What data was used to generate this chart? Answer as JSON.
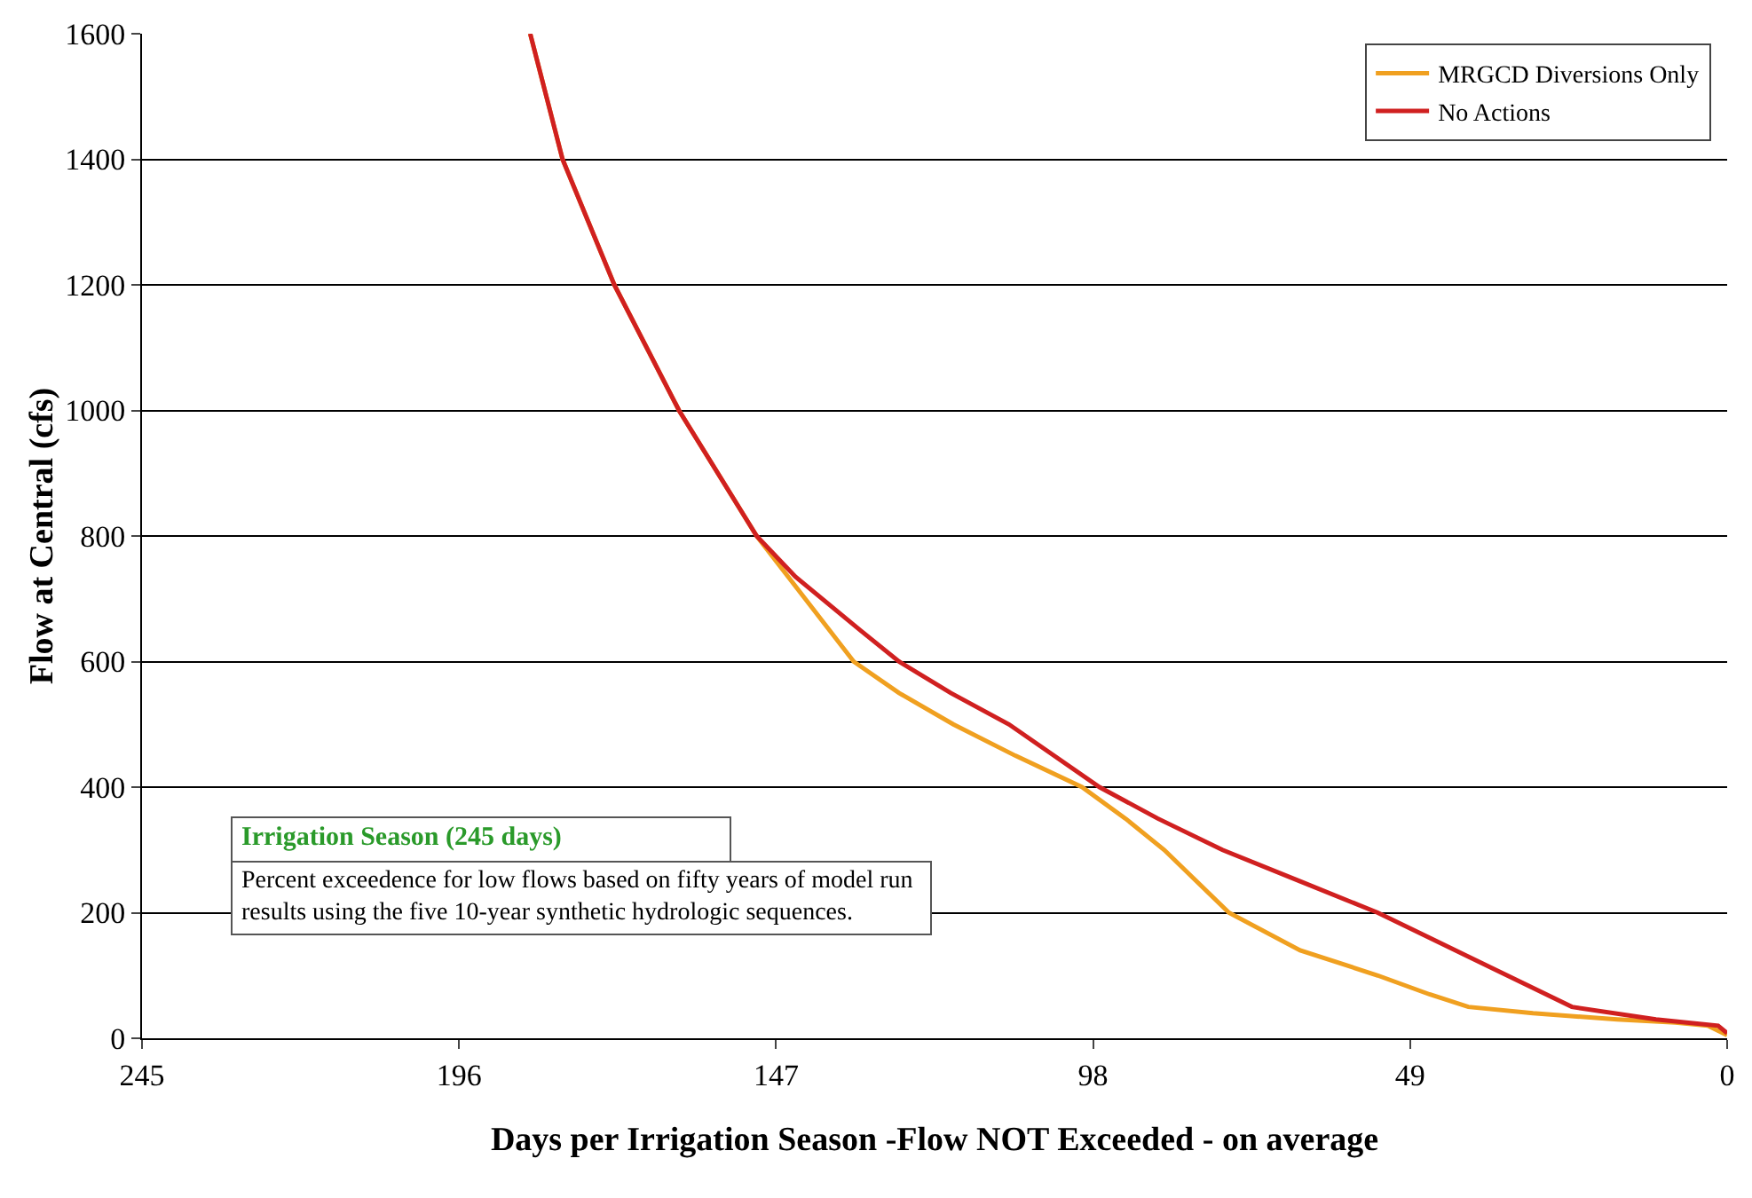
{
  "chart_data": {
    "type": "line",
    "xlabel": "Days per Irrigation Season -Flow NOT Exceeded - on average",
    "ylabel": "Flow at Central (cfs)",
    "xlim": [
      245,
      0
    ],
    "xticks": [
      245,
      196,
      147,
      98,
      49,
      0
    ],
    "ylim": [
      0,
      1600
    ],
    "yticks": [
      0,
      200,
      400,
      600,
      800,
      1000,
      1200,
      1400,
      1600
    ],
    "grid": "y",
    "legend": "top right",
    "series": [
      {
        "name": "MRGCD Diversions Only",
        "color": "#f0a020",
        "x": [
          185,
          180,
          172,
          162,
          150,
          142.5,
          135,
          128,
          119.6,
          110,
          99.7,
          93,
          87,
          77,
          66,
          54,
          46,
          40,
          30,
          17,
          8,
          3,
          0
        ],
        "values": [
          1600,
          1400,
          1200,
          1000,
          800,
          700,
          600,
          550,
          500,
          450,
          400,
          350,
          300,
          200,
          140,
          100,
          70,
          50,
          40,
          30,
          25,
          20,
          5
        ]
      },
      {
        "name": "No Actions",
        "color": "#d02020",
        "x": [
          185,
          180,
          172,
          162,
          150,
          144,
          134,
          128,
          120,
          111,
          97,
          88,
          78,
          66,
          54,
          46,
          40,
          32,
          24,
          11,
          1.4,
          0
        ],
        "values": [
          1600,
          1400,
          1200,
          1000,
          800,
          735,
          650,
          600,
          550,
          500,
          400,
          350,
          300,
          250,
          200,
          160,
          130,
          90,
          50,
          30,
          20,
          8
        ]
      }
    ],
    "annotations": [
      "Irrigation Season (245 days)",
      "Percent exceedence for low flows based on fifty years of model run results using the five 10-year synthetic hydrologic sequences."
    ]
  }
}
